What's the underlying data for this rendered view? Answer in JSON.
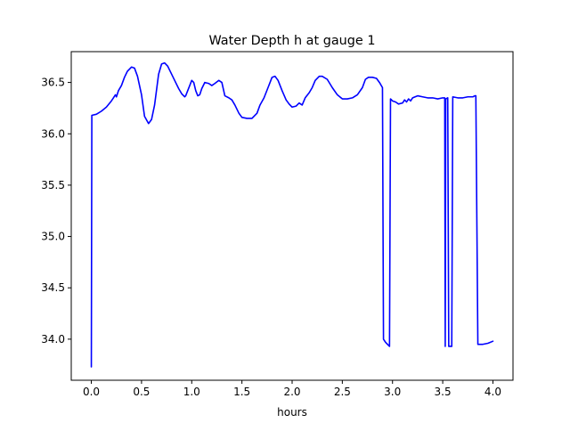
{
  "chart_data": {
    "type": "line",
    "title": "Water Depth h at gauge 1",
    "xlabel": "hours",
    "ylabel": "",
    "xlim": [
      -0.2,
      4.2
    ],
    "ylim": [
      33.6,
      36.8
    ],
    "xticks": [
      0.0,
      0.5,
      1.0,
      1.5,
      2.0,
      2.5,
      3.0,
      3.5,
      4.0
    ],
    "xtick_labels": [
      "0.0",
      "0.5",
      "1.0",
      "1.5",
      "2.0",
      "2.5",
      "3.0",
      "3.5",
      "4.0"
    ],
    "yticks": [
      34.0,
      34.5,
      35.0,
      35.5,
      36.0,
      36.5
    ],
    "ytick_labels": [
      "34.0",
      "34.5",
      "35.0",
      "35.5",
      "36.0",
      "36.5"
    ],
    "grid": false,
    "legend": false,
    "series": [
      {
        "color": "#0000ff",
        "x": [
          0.0,
          0.005,
          0.05,
          0.1,
          0.15,
          0.2,
          0.22,
          0.24,
          0.25,
          0.27,
          0.3,
          0.33,
          0.36,
          0.4,
          0.43,
          0.46,
          0.5,
          0.53,
          0.57,
          0.6,
          0.63,
          0.67,
          0.7,
          0.73,
          0.76,
          0.79,
          0.83,
          0.87,
          0.9,
          0.93,
          0.94,
          0.96,
          0.98,
          1.0,
          1.02,
          1.04,
          1.06,
          1.08,
          1.1,
          1.13,
          1.17,
          1.2,
          1.23,
          1.27,
          1.3,
          1.33,
          1.37,
          1.4,
          1.43,
          1.47,
          1.5,
          1.55,
          1.6,
          1.65,
          1.68,
          1.72,
          1.76,
          1.8,
          1.83,
          1.86,
          1.9,
          1.94,
          1.97,
          2.0,
          2.04,
          2.07,
          2.1,
          2.13,
          2.17,
          2.2,
          2.23,
          2.27,
          2.3,
          2.35,
          2.4,
          2.45,
          2.5,
          2.55,
          2.6,
          2.65,
          2.7,
          2.73,
          2.76,
          2.8,
          2.84,
          2.87,
          2.9,
          2.91,
          2.93,
          2.95,
          2.97,
          2.98,
          3.0,
          3.03,
          3.06,
          3.1,
          3.12,
          3.14,
          3.16,
          3.18,
          3.2,
          3.25,
          3.3,
          3.35,
          3.4,
          3.45,
          3.5,
          3.52,
          3.525,
          3.53,
          3.55,
          3.56,
          3.565,
          3.57,
          3.58,
          3.59,
          3.6,
          3.65,
          3.7,
          3.75,
          3.8,
          3.82,
          3.83,
          3.85,
          3.9,
          3.95,
          4.0
        ],
        "y": [
          33.73,
          36.18,
          36.19,
          36.22,
          36.26,
          36.32,
          36.35,
          36.38,
          36.36,
          36.42,
          36.47,
          36.55,
          36.61,
          36.65,
          36.64,
          36.56,
          36.38,
          36.17,
          36.1,
          36.14,
          36.28,
          36.58,
          36.68,
          36.69,
          36.66,
          36.6,
          36.52,
          36.44,
          36.39,
          36.36,
          36.37,
          36.42,
          36.47,
          36.52,
          36.5,
          36.42,
          36.37,
          36.38,
          36.44,
          36.5,
          36.49,
          36.47,
          36.49,
          36.52,
          36.5,
          36.37,
          36.35,
          36.33,
          36.28,
          36.2,
          36.16,
          36.15,
          36.15,
          36.2,
          36.28,
          36.35,
          36.45,
          36.55,
          36.56,
          36.52,
          36.42,
          36.33,
          36.29,
          36.26,
          36.27,
          36.3,
          36.28,
          36.35,
          36.4,
          36.45,
          36.52,
          36.56,
          36.56,
          36.53,
          36.45,
          36.38,
          36.34,
          36.34,
          36.35,
          36.38,
          36.45,
          36.53,
          36.55,
          36.55,
          36.54,
          36.5,
          36.45,
          34.0,
          33.97,
          33.95,
          33.93,
          36.34,
          36.32,
          36.31,
          36.29,
          36.3,
          36.33,
          36.31,
          36.34,
          36.32,
          36.35,
          36.37,
          36.36,
          36.35,
          36.35,
          36.34,
          36.35,
          36.35,
          33.93,
          36.34,
          36.35,
          33.93,
          33.93,
          33.93,
          33.93,
          33.93,
          36.36,
          36.35,
          36.35,
          36.36,
          36.36,
          36.37,
          36.37,
          33.95,
          33.95,
          33.96,
          33.98
        ]
      }
    ]
  }
}
